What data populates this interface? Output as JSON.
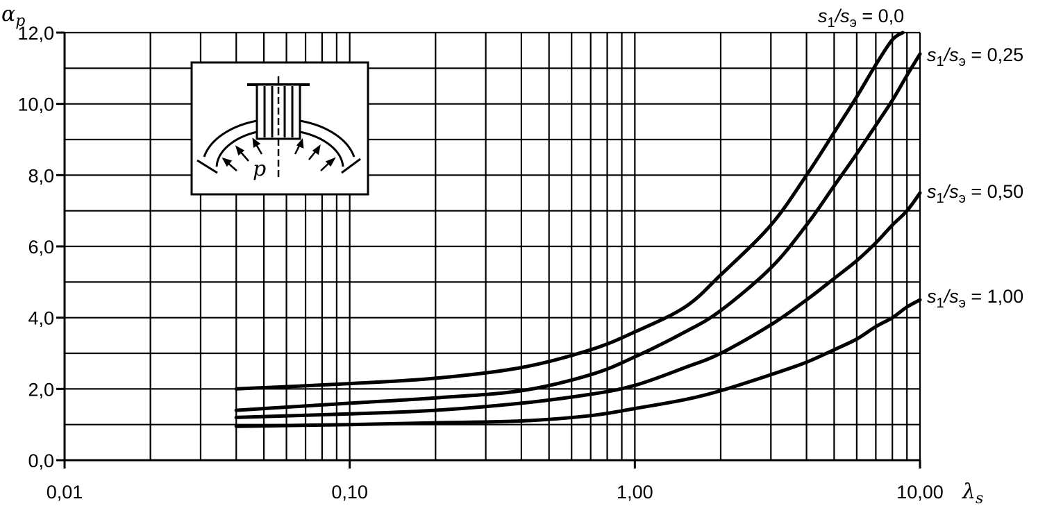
{
  "chart_data": {
    "type": "line",
    "x_scale": "log",
    "xlim": [
      0.01,
      10.0
    ],
    "ylim": [
      0.0,
      12.0
    ],
    "grid": true,
    "x_ticks": [
      {
        "value": 0.01,
        "label": "0,01"
      },
      {
        "value": 0.1,
        "label": "0,10"
      },
      {
        "value": 1.0,
        "label": "1,00"
      },
      {
        "value": 10.0,
        "label": "10,00"
      }
    ],
    "y_ticks": [
      {
        "value": 0,
        "label": "0,0"
      },
      {
        "value": 2,
        "label": "2,0"
      },
      {
        "value": 4,
        "label": "4,0"
      },
      {
        "value": 6,
        "label": "6,0"
      },
      {
        "value": 8,
        "label": "8,0"
      },
      {
        "value": 10,
        "label": "10,0"
      },
      {
        "value": 12,
        "label": "12,0"
      }
    ],
    "x_label": "λs",
    "y_label": "αp",
    "inset_label": "p",
    "series": [
      {
        "name": "s1/sэ = 0,0",
        "label_parts": [
          "s",
          "1",
          "/s",
          "э",
          " = 0,0"
        ],
        "x": [
          0.04,
          0.1,
          0.2,
          0.4,
          0.7,
          1.0,
          1.5,
          2.0,
          3.0,
          4.0,
          5.0,
          6.0,
          7.0,
          8.0,
          8.7
        ],
        "y": [
          2.0,
          2.15,
          2.3,
          2.6,
          3.1,
          3.6,
          4.3,
          5.2,
          6.6,
          8.0,
          9.2,
          10.2,
          11.1,
          11.8,
          12.0
        ]
      },
      {
        "name": "s1/sэ = 0,25",
        "label_parts": [
          "s",
          "1",
          "/s",
          "э",
          " = 0,25"
        ],
        "x": [
          0.04,
          0.1,
          0.2,
          0.4,
          0.7,
          1.0,
          1.5,
          2.0,
          3.0,
          4.0,
          5.0,
          6.0,
          7.0,
          8.0,
          9.0,
          10.0
        ],
        "y": [
          1.4,
          1.6,
          1.75,
          1.95,
          2.4,
          2.9,
          3.6,
          4.2,
          5.4,
          6.6,
          7.7,
          8.6,
          9.4,
          10.1,
          10.8,
          11.4
        ]
      },
      {
        "name": "s1/sэ = 0,50",
        "label_parts": [
          "s",
          "1",
          "/s",
          "э",
          " = 0,50"
        ],
        "x": [
          0.04,
          0.1,
          0.2,
          0.4,
          0.7,
          1.0,
          1.5,
          2.0,
          3.0,
          4.0,
          5.0,
          6.0,
          7.0,
          8.0,
          9.0,
          10.0
        ],
        "y": [
          1.2,
          1.3,
          1.4,
          1.6,
          1.85,
          2.1,
          2.6,
          3.0,
          3.8,
          4.5,
          5.1,
          5.6,
          6.1,
          6.6,
          7.0,
          7.5
        ]
      },
      {
        "name": "s1/sэ = 1,00",
        "label_parts": [
          "s",
          "1",
          "/s",
          "э",
          " = 1,00"
        ],
        "x": [
          0.04,
          0.1,
          0.2,
          0.4,
          0.7,
          1.0,
          1.5,
          2.0,
          3.0,
          4.0,
          5.0,
          6.0,
          7.0,
          8.0,
          9.0,
          10.0
        ],
        "y": [
          0.95,
          1.0,
          1.05,
          1.1,
          1.25,
          1.45,
          1.7,
          1.95,
          2.4,
          2.75,
          3.1,
          3.4,
          3.75,
          4.0,
          4.3,
          4.5
        ]
      }
    ]
  }
}
